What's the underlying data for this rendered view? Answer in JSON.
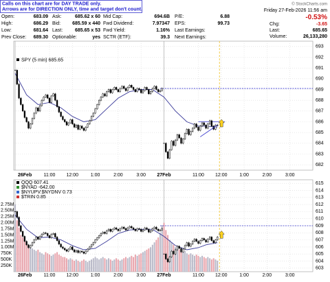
{
  "header": {
    "notice": [
      "Calls on this chart are for DAY TRADE only.",
      "Arrows are for DIRECTION ONLY, time and target don't count."
    ],
    "date": "Friday 27-Feb-2026 11:56 am",
    "change_pct": "-0.53%",
    "credit": "© StockCharts.com",
    "quote": [
      [
        [
          "Open:",
          "683.09"
        ],
        [
          "Ask:",
          "685.62 x 60"
        ],
        [
          "Mid Cap:",
          "694.6B"
        ],
        [
          "P/E:",
          "6.88"
        ]
      ],
      [
        [
          "High:",
          "686.29"
        ],
        [
          "Bid:",
          "685.59 x 440"
        ],
        [
          "Fwd Dividend:",
          "7.97347"
        ],
        [
          "EPS:",
          "99.73"
        ]
      ],
      [
        [
          "Low:",
          "681.64"
        ],
        [
          "Last:",
          "685.65 x 53"
        ],
        [
          "Fwd Yield:",
          "1.16%"
        ],
        [
          "Last Earnings:"
        ]
      ],
      [
        [
          "Prev Close:",
          "689.30"
        ],
        [
          "Optionable:",
          "yes"
        ],
        [
          "SCTR (ETF):",
          "39.3"
        ],
        [
          "Next Earnings:"
        ]
      ]
    ],
    "right": [
      [
        "Chg:",
        "-3.65"
      ],
      [
        "Last:",
        "685.65"
      ],
      [
        "Volume:",
        "26,133,280"
      ]
    ]
  },
  "chart_data": [
    {
      "type": "candlestick",
      "legend": "SPY (5 min) 685.65",
      "color": "#000000",
      "xlim": [
        0,
        156
      ],
      "xticks": [
        {
          "value": 0,
          "label": "26Feb"
        },
        {
          "value": 18,
          "label": "11:00"
        },
        {
          "value": 30,
          "label": "12:00"
        },
        {
          "value": 42,
          "label": "1:00"
        },
        {
          "value": 54,
          "label": "2:00"
        },
        {
          "value": 66,
          "label": "3:00"
        },
        {
          "value": 78,
          "label": "27Feb"
        },
        {
          "value": 96,
          "label": "11:00"
        },
        {
          "value": 108,
          "label": "12:00"
        },
        {
          "value": 120,
          "label": "1:00"
        },
        {
          "value": 132,
          "label": "2:00"
        },
        {
          "value": 144,
          "label": "3:00"
        }
      ],
      "day_starts": [
        0,
        78
      ],
      "ylim": [
        681.5,
        693.5
      ],
      "yticks": [
        682,
        683,
        684,
        685,
        686,
        687,
        688,
        689,
        690,
        691,
        692,
        693
      ],
      "close": [
        690.8,
        689.5,
        688.2,
        687.6,
        687.0,
        686.4,
        686.0,
        685.4,
        685.8,
        686.3,
        686.8,
        687.3,
        687.0,
        687.5,
        688.0,
        688.3,
        688.5,
        688.2,
        687.8,
        688.4,
        688.6,
        688.0,
        687.4,
        686.9,
        686.5,
        686.2,
        686.0,
        685.7,
        685.9,
        686.2,
        685.8,
        685.5,
        685.7,
        685.3,
        685.6,
        685.4,
        685.2,
        685.5,
        685.8,
        686.1,
        686.5,
        686.8,
        687.2,
        687.6,
        688.0,
        688.3,
        688.6,
        688.4,
        688.8,
        689.0,
        688.7,
        689.0,
        689.2,
        689.0,
        688.8,
        689.1,
        689.3,
        689.1,
        688.9,
        689.2,
        689.4,
        689.2,
        689.0,
        688.8,
        689.1,
        689.0,
        688.7,
        688.9,
        689.2,
        689.0,
        688.6,
        688.8,
        689.1,
        689.3,
        689.0,
        688.8,
        688.9,
        689.1,
        684.0,
        683.2,
        682.6,
        683.4,
        684.2,
        683.8,
        684.3,
        684.8,
        684.5,
        684.0,
        684.4,
        684.9,
        685.3,
        684.8,
        685.1,
        685.4,
        685.8,
        685.5,
        685.2,
        685.6,
        685.9,
        685.7,
        685.4,
        685.8,
        686.1,
        685.6,
        685.3,
        685.7,
        685.65
      ],
      "ma": {
        "color": "#3a3a9a",
        "x": [
          0,
          6,
          12,
          18,
          24,
          30,
          36,
          42,
          48,
          54,
          60,
          66,
          72,
          78,
          84,
          90,
          96,
          100,
          106
        ],
        "values": [
          690.5,
          688.5,
          687.6,
          687.8,
          687.3,
          686.5,
          686.0,
          686.2,
          687.2,
          688.2,
          688.8,
          689.0,
          689.0,
          688.3,
          687.0,
          686.0,
          685.6,
          685.6,
          685.5
        ]
      },
      "levels": [
        {
          "value": 689.1,
          "from": 76,
          "color": "#3333cc"
        },
        {
          "value": 686.0,
          "from": 96,
          "to": 110,
          "color": "#3333cc"
        }
      ],
      "trend": {
        "color": "#3333cc",
        "x": [
          97,
          106
        ],
        "values": [
          684.6,
          685.7
        ]
      }
    },
    {
      "type": "candlestick",
      "color": "#000000",
      "legend": [
        {
          "name": "QQQ 607.41",
          "color": "#000000"
        },
        {
          "name": "$NYAD -642.00",
          "color": "#2f8f2f"
        },
        {
          "name": "$NYUPV:$NYDNV 0.73",
          "color": "#3366cc"
        },
        {
          "name": "$TRIN 0.85",
          "color": "#cc3333"
        }
      ],
      "ylim": [
        602.5,
        615.5
      ],
      "yticks": [
        603,
        604,
        605,
        606,
        607,
        608,
        609,
        610,
        611,
        612,
        613,
        614,
        615
      ],
      "close": [
        611.0,
        610.2,
        609.0,
        608.2,
        607.5,
        606.8,
        606.3,
        605.9,
        606.2,
        606.6,
        607.0,
        607.4,
        607.1,
        607.5,
        607.8,
        608.0,
        607.9,
        607.6,
        607.3,
        607.8,
        607.9,
        607.4,
        606.9,
        606.4,
        606.0,
        605.8,
        605.6,
        605.4,
        605.7,
        606.0,
        605.6,
        605.3,
        605.5,
        605.2,
        605.4,
        605.3,
        605.1,
        605.4,
        605.7,
        606.0,
        606.3,
        606.6,
        607.0,
        607.3,
        607.6,
        607.9,
        608.1,
        607.9,
        608.3,
        608.5,
        608.2,
        608.5,
        608.7,
        608.5,
        608.3,
        608.6,
        608.8,
        608.6,
        608.4,
        608.7,
        608.9,
        608.7,
        608.5,
        608.3,
        608.6,
        608.5,
        608.2,
        608.4,
        608.7,
        608.5,
        608.1,
        608.3,
        608.6,
        608.8,
        608.5,
        608.3,
        608.4,
        608.6,
        605.0,
        604.3,
        603.9,
        604.6,
        605.4,
        605.0,
        605.6,
        606.1,
        605.8,
        605.3,
        605.7,
        606.2,
        606.6,
        606.1,
        606.4,
        606.8,
        607.1,
        606.8,
        606.5,
        606.9,
        607.2,
        607.0,
        606.7,
        607.1,
        607.4,
        606.9,
        606.6,
        607.0,
        607.41
      ],
      "ma": {
        "color": "#3a3a9a",
        "x": [
          0,
          6,
          12,
          18,
          24,
          30,
          36,
          42,
          48,
          54,
          60,
          66,
          72,
          78,
          84,
          90,
          96,
          100,
          106
        ],
        "values": [
          610.5,
          608.5,
          607.3,
          607.4,
          607.0,
          606.2,
          605.6,
          605.8,
          606.8,
          607.9,
          608.4,
          608.5,
          608.5,
          607.5,
          606.2,
          605.6,
          605.9,
          606.3,
          606.6
        ]
      },
      "levels": [
        {
          "value": 609.0,
          "from": 76,
          "color": "#3333cc"
        }
      ],
      "volume": {
        "up_color": "#b9b9c8",
        "down_color": "#e8a4ac",
        "ylim": [
          0,
          3000000
        ],
        "yticks": [
          {
            "value": 250000,
            "label": "250K"
          },
          {
            "value": 500000,
            "label": "500K"
          },
          {
            "value": 750000,
            "label": "750K"
          },
          {
            "value": 1000000,
            "label": "1.00M"
          },
          {
            "value": 1250000,
            "label": "1.25M"
          },
          {
            "value": 1500000,
            "label": "1.50M"
          },
          {
            "value": 1750000,
            "label": "1.75M"
          },
          {
            "value": 2000000,
            "label": "2.00M"
          },
          {
            "value": 2250000,
            "label": "2.25M"
          },
          {
            "value": 2500000,
            "label": "2.50M"
          },
          {
            "value": 2750000,
            "label": "2.75M"
          }
        ],
        "values": [
          2750000,
          2100000,
          1800000,
          1500000,
          1400000,
          1300000,
          1200000,
          1100000,
          1000000,
          950000,
          900000,
          850000,
          900000,
          800000,
          750000,
          700000,
          800000,
          750000,
          700000,
          650000,
          700000,
          750000,
          800000,
          700000,
          650000,
          600000,
          600000,
          550000,
          500000,
          550000,
          500000,
          450000,
          500000,
          450000,
          400000,
          450000,
          500000,
          450000,
          400000,
          450000,
          500000,
          550000,
          600000,
          550000,
          500000,
          550000,
          600000,
          550000,
          500000,
          550000,
          500000,
          450000,
          500000,
          550000,
          500000,
          450000,
          500000,
          550000,
          600000,
          550000,
          600000,
          650000,
          600000,
          700000,
          650000,
          700000,
          750000,
          800000,
          850000,
          900000,
          950000,
          1000000,
          1100000,
          1200000,
          1300000,
          1400000,
          1600000,
          1900000,
          2000000,
          1700000,
          1500000,
          1300000,
          1200000,
          1100000,
          1000000,
          950000,
          900000,
          850000,
          800000,
          850000,
          750000,
          700000,
          750000,
          700000,
          650000,
          700000,
          650000,
          600000,
          650000,
          600000,
          550000,
          600000,
          550000,
          500000,
          550000,
          500000,
          450000
        ]
      }
    }
  ]
}
